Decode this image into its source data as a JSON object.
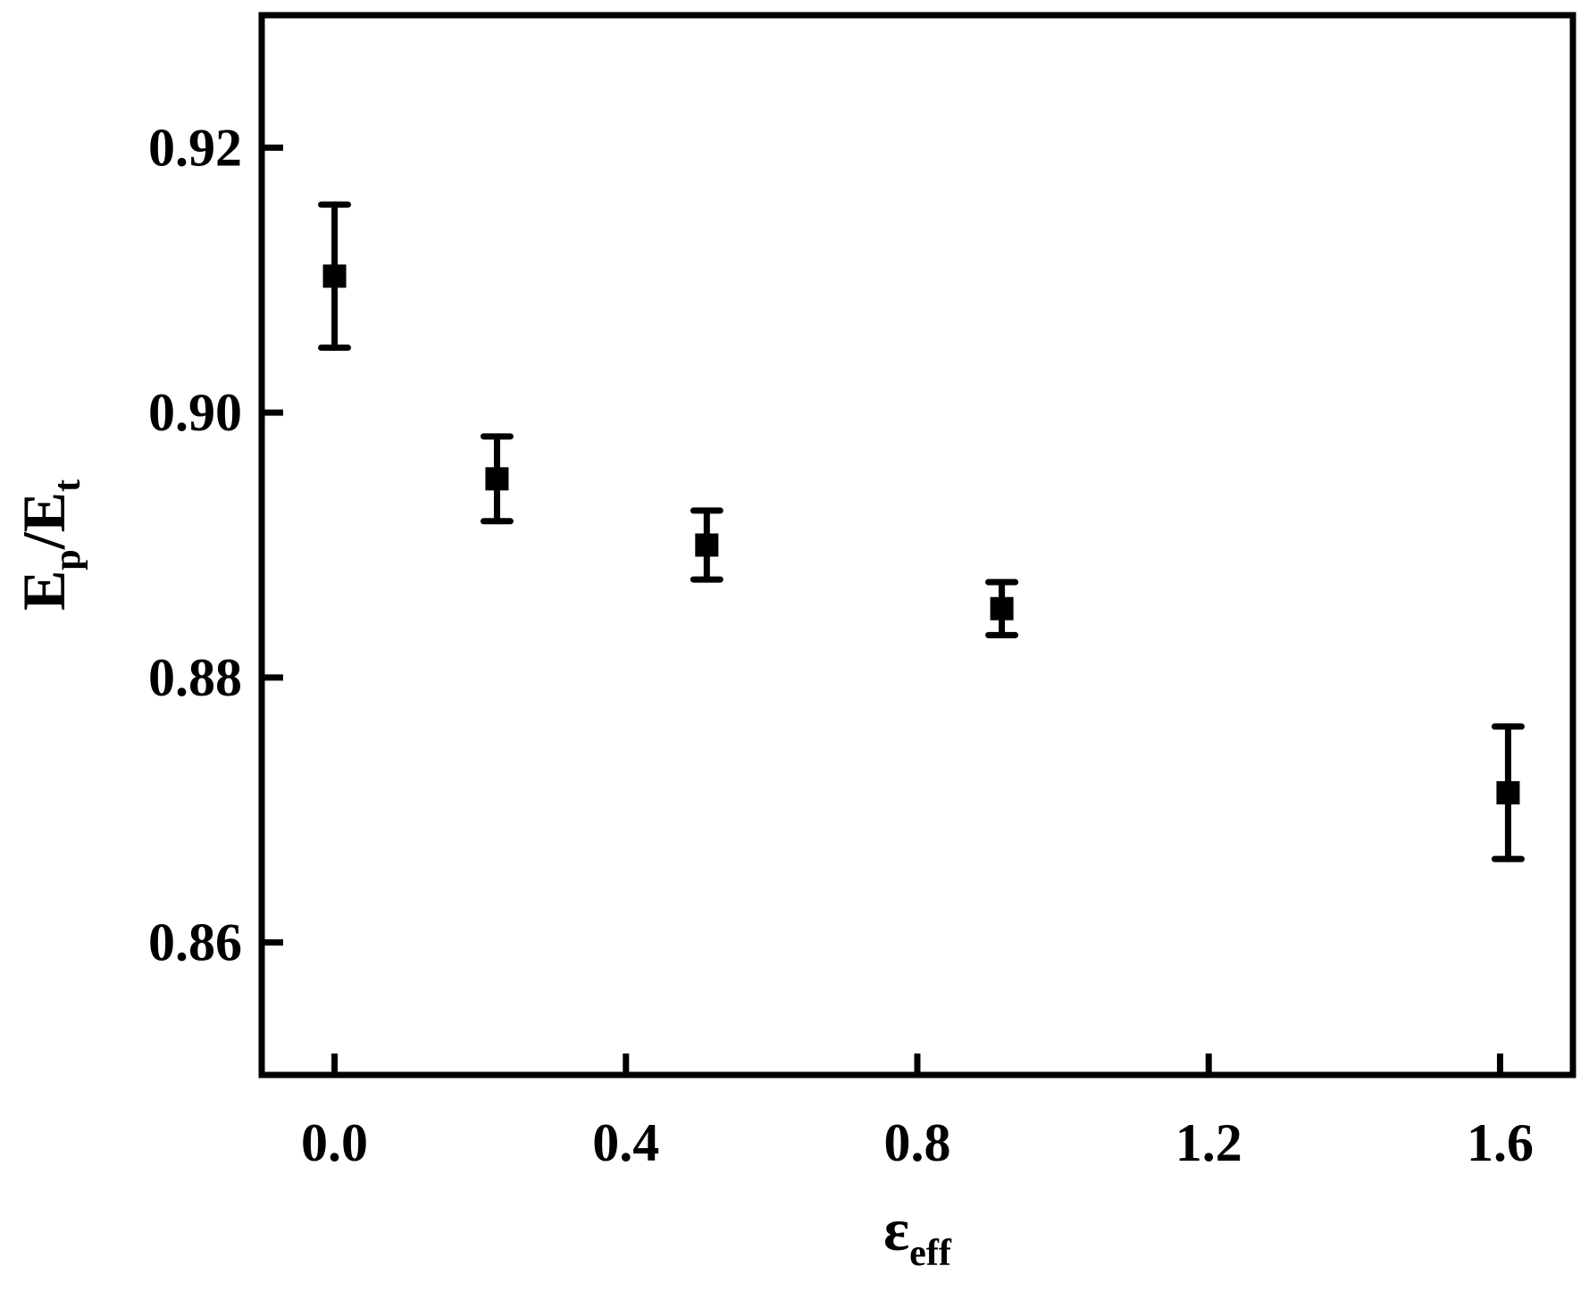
{
  "chart_data": {
    "type": "scatter",
    "xlabel": [
      "ε",
      "eff"
    ],
    "ylabel": [
      "E",
      "p",
      "/E",
      "t"
    ],
    "x": [
      0.0,
      0.223,
      0.511,
      0.916,
      1.611
    ],
    "values": [
      0.9103,
      0.895,
      0.89,
      0.8852,
      0.8713
    ],
    "errors": [
      0.0054,
      0.0032,
      0.0026,
      0.002,
      0.005
    ],
    "color": "#000000",
    "xlim": [
      -0.1,
      1.7
    ],
    "ylim": [
      0.85,
      0.93
    ],
    "xticks": [
      {
        "value": 0,
        "label": "0.0"
      },
      0.4,
      0.8,
      1.2,
      1.6
    ],
    "yticks": [
      0.86,
      0.88,
      {
        "value": 0.9,
        "label": "0.90"
      },
      0.92
    ]
  }
}
